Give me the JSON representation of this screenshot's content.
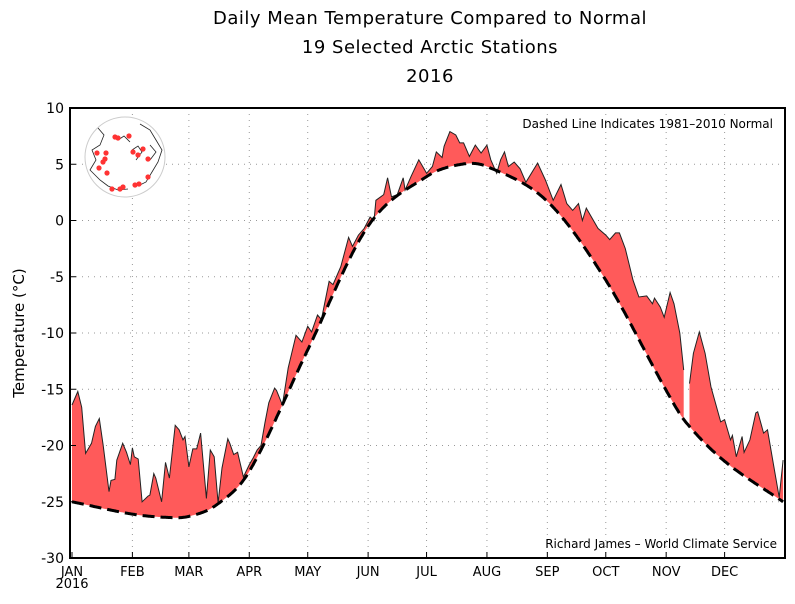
{
  "chart_data": {
    "type": "area",
    "title": [
      "Daily Mean Temperature Compared to Normal",
      "19 Selected Arctic Stations",
      "2016"
    ],
    "ylabel": "Temperature (°C)",
    "xlabel": "",
    "ylim": [
      -30,
      10
    ],
    "yticks": [
      10,
      5,
      0,
      -5,
      -10,
      -15,
      -20,
      -25,
      -30
    ],
    "xlim": [
      "2016-01-01",
      "2016-12-31"
    ],
    "xticks": [
      {
        "date": "2016-01-01",
        "label": "JAN"
      },
      {
        "date": "2016-02-01",
        "label": "FEB"
      },
      {
        "date": "2016-03-01",
        "label": "MAR"
      },
      {
        "date": "2016-04-01",
        "label": "APR"
      },
      {
        "date": "2016-05-01",
        "label": "MAY"
      },
      {
        "date": "2016-06-01",
        "label": "JUN"
      },
      {
        "date": "2016-07-01",
        "label": "JUL"
      },
      {
        "date": "2016-08-01",
        "label": "AUG"
      },
      {
        "date": "2016-09-01",
        "label": "SEP"
      },
      {
        "date": "2016-10-01",
        "label": "OCT"
      },
      {
        "date": "2016-11-01",
        "label": "NOV"
      },
      {
        "date": "2016-12-01",
        "label": "DEC"
      }
    ],
    "year_label": "2016",
    "grid": true,
    "annotation_top": "Dashed Line Indicates 1981–2010 Normal",
    "annotation_bottom": "Richard James – World Climate Service",
    "colors": {
      "above_normal_fill": "#ff5a5a",
      "observed_line": "#222222",
      "normal_line": "#000000",
      "grid": "#999999"
    },
    "series": [
      {
        "role": "observed",
        "points": [
          [
            "2016-01-01",
            -16.4
          ],
          [
            "2016-01-04",
            -15.2
          ],
          [
            "2016-01-06",
            -16.6
          ],
          [
            "2016-01-08",
            -20.7
          ],
          [
            "2016-01-11",
            -19.8
          ],
          [
            "2016-01-13",
            -18.3
          ],
          [
            "2016-01-15",
            -17.6
          ],
          [
            "2016-01-17",
            -20.0
          ],
          [
            "2016-01-20",
            -24.1
          ],
          [
            "2016-01-21",
            -23.1
          ],
          [
            "2016-01-23",
            -23.0
          ],
          [
            "2016-01-24",
            -21.3
          ],
          [
            "2016-01-27",
            -19.8
          ],
          [
            "2016-01-29",
            -20.6
          ],
          [
            "2016-01-31",
            -21.7
          ],
          [
            "2016-02-01",
            -20.2
          ],
          [
            "2016-02-02",
            -21.0
          ],
          [
            "2016-02-04",
            -21.2
          ],
          [
            "2016-02-06",
            -25.0
          ],
          [
            "2016-02-09",
            -24.5
          ],
          [
            "2016-02-10",
            -24.4
          ],
          [
            "2016-02-12",
            -22.5
          ],
          [
            "2016-02-13",
            -22.9
          ],
          [
            "2016-02-16",
            -25.0
          ],
          [
            "2016-02-18",
            -21.5
          ],
          [
            "2016-02-20",
            -22.9
          ],
          [
            "2016-02-23",
            -18.2
          ],
          [
            "2016-02-25",
            -18.6
          ],
          [
            "2016-02-27",
            -19.5
          ],
          [
            "2016-02-28",
            -19.2
          ],
          [
            "2016-03-01",
            -21.9
          ],
          [
            "2016-03-03",
            -20.3
          ],
          [
            "2016-03-05",
            -20.3
          ],
          [
            "2016-03-07",
            -18.9
          ],
          [
            "2016-03-10",
            -24.7
          ],
          [
            "2016-03-12",
            -20.4
          ],
          [
            "2016-03-14",
            -21.0
          ],
          [
            "2016-03-16",
            -25.1
          ],
          [
            "2016-03-18",
            -22.0
          ],
          [
            "2016-03-21",
            -19.4
          ],
          [
            "2016-03-22",
            -19.8
          ],
          [
            "2016-03-24",
            -20.8
          ],
          [
            "2016-03-26",
            -20.6
          ],
          [
            "2016-03-29",
            -22.8
          ],
          [
            "2016-04-01",
            -21.7
          ],
          [
            "2016-04-03",
            -21.1
          ],
          [
            "2016-04-05",
            -20.4
          ],
          [
            "2016-04-07",
            -20.0
          ],
          [
            "2016-04-09",
            -18.0
          ],
          [
            "2016-04-11",
            -16.2
          ],
          [
            "2016-04-14",
            -14.9
          ],
          [
            "2016-04-15",
            -15.1
          ],
          [
            "2016-04-18",
            -16.4
          ],
          [
            "2016-04-21",
            -13.1
          ],
          [
            "2016-04-25",
            -10.2
          ],
          [
            "2016-04-28",
            -10.8
          ],
          [
            "2016-05-01",
            -9.4
          ],
          [
            "2016-05-03",
            -9.9
          ],
          [
            "2016-05-06",
            -8.4
          ],
          [
            "2016-05-08",
            -8.8
          ],
          [
            "2016-05-12",
            -5.4
          ],
          [
            "2016-05-14",
            -5.7
          ],
          [
            "2016-05-18",
            -4.1
          ],
          [
            "2016-05-22",
            -1.5
          ],
          [
            "2016-05-24",
            -2.3
          ],
          [
            "2016-05-27",
            -1.3
          ],
          [
            "2016-05-30",
            -0.7
          ],
          [
            "2016-06-02",
            0.3
          ],
          [
            "2016-06-04",
            0.0
          ],
          [
            "2016-06-05",
            1.8
          ],
          [
            "2016-06-09",
            2.3
          ],
          [
            "2016-06-11",
            3.8
          ],
          [
            "2016-06-13",
            2.1
          ],
          [
            "2016-06-16",
            2.3
          ],
          [
            "2016-06-19",
            3.8
          ],
          [
            "2016-06-20",
            2.7
          ],
          [
            "2016-06-23",
            3.9
          ],
          [
            "2016-06-27",
            5.4
          ],
          [
            "2016-06-29",
            4.8
          ],
          [
            "2016-07-01",
            4.2
          ],
          [
            "2016-07-04",
            4.8
          ],
          [
            "2016-07-06",
            6.1
          ],
          [
            "2016-07-09",
            5.6
          ],
          [
            "2016-07-10",
            6.6
          ],
          [
            "2016-07-13",
            7.9
          ],
          [
            "2016-07-16",
            7.6
          ],
          [
            "2016-07-18",
            6.9
          ],
          [
            "2016-07-20",
            6.9
          ],
          [
            "2016-07-23",
            5.7
          ],
          [
            "2016-07-26",
            6.7
          ],
          [
            "2016-07-29",
            6.0
          ],
          [
            "2016-08-01",
            6.7
          ],
          [
            "2016-08-03",
            5.4
          ],
          [
            "2016-08-06",
            4.2
          ],
          [
            "2016-08-08",
            5.4
          ],
          [
            "2016-08-10",
            6.1
          ],
          [
            "2016-08-12",
            4.8
          ],
          [
            "2016-08-15",
            5.2
          ],
          [
            "2016-08-18",
            4.6
          ],
          [
            "2016-08-21",
            3.4
          ],
          [
            "2016-08-27",
            5.1
          ],
          [
            "2016-08-31",
            3.6
          ],
          [
            "2016-09-04",
            1.8
          ],
          [
            "2016-09-08",
            3.2
          ],
          [
            "2016-09-11",
            1.5
          ],
          [
            "2016-09-14",
            0.9
          ],
          [
            "2016-09-17",
            1.5
          ],
          [
            "2016-09-19",
            0.0
          ],
          [
            "2016-09-21",
            1.1
          ],
          [
            "2016-09-27",
            -0.7
          ],
          [
            "2016-10-01",
            -1.3
          ],
          [
            "2016-10-03",
            -1.7
          ],
          [
            "2016-10-06",
            -1.1
          ],
          [
            "2016-10-08",
            -1.1
          ],
          [
            "2016-10-11",
            -2.5
          ],
          [
            "2016-10-15",
            -5.3
          ],
          [
            "2016-10-18",
            -6.8
          ],
          [
            "2016-10-22",
            -6.7
          ],
          [
            "2016-10-25",
            -7.4
          ],
          [
            "2016-10-26",
            -6.9
          ],
          [
            "2016-10-29",
            -7.7
          ],
          [
            "2016-10-31",
            -8.6
          ],
          [
            "2016-11-03",
            -6.4
          ],
          [
            "2016-11-05",
            -7.4
          ],
          [
            "2016-11-08",
            -10.0
          ],
          [
            "2016-11-10",
            -13.3
          ],
          [
            "2016-11-12",
            null
          ],
          [
            "2016-11-13",
            -14.5
          ],
          [
            "2016-11-15",
            -11.8
          ],
          [
            "2016-11-18",
            -9.9
          ],
          [
            "2016-11-21",
            -11.8
          ],
          [
            "2016-11-24",
            -14.8
          ],
          [
            "2016-11-29",
            -17.9
          ],
          [
            "2016-12-01",
            -17.7
          ],
          [
            "2016-12-04",
            -19.5
          ],
          [
            "2016-12-05",
            -19.1
          ],
          [
            "2016-12-07",
            -21.0
          ],
          [
            "2016-12-10",
            -19.2
          ],
          [
            "2016-12-11",
            -20.6
          ],
          [
            "2016-12-14",
            -19.5
          ],
          [
            "2016-12-17",
            -17.1
          ],
          [
            "2016-12-18",
            -17.0
          ],
          [
            "2016-12-21",
            -18.9
          ],
          [
            "2016-12-23",
            -18.6
          ],
          [
            "2016-12-26",
            -21.6
          ],
          [
            "2016-12-29",
            -24.6
          ],
          [
            "2016-12-31",
            -21.3
          ]
        ]
      },
      {
        "role": "normal",
        "points": [
          [
            "2016-01-01",
            -25.0
          ],
          [
            "2016-02-01",
            -26.1
          ],
          [
            "2016-02-20",
            -26.4
          ],
          [
            "2016-03-01",
            -26.3
          ],
          [
            "2016-03-15",
            -25.3
          ],
          [
            "2016-04-01",
            -22.3
          ],
          [
            "2016-05-01",
            -11.5
          ],
          [
            "2016-06-01",
            -0.5
          ],
          [
            "2016-07-01",
            3.9
          ],
          [
            "2016-07-19",
            5.0
          ],
          [
            "2016-08-01",
            4.8
          ],
          [
            "2016-09-01",
            1.7
          ],
          [
            "2016-10-01",
            -5.3
          ],
          [
            "2016-11-01",
            -15.1
          ],
          [
            "2016-11-11",
            -17.9
          ],
          [
            "2016-12-01",
            -21.4
          ],
          [
            "2016-12-31",
            -25.0
          ]
        ]
      }
    ]
  },
  "inset_map": {
    "icon": "arctic-station-map",
    "station_count": 19,
    "marker_color": "#ff3333"
  }
}
